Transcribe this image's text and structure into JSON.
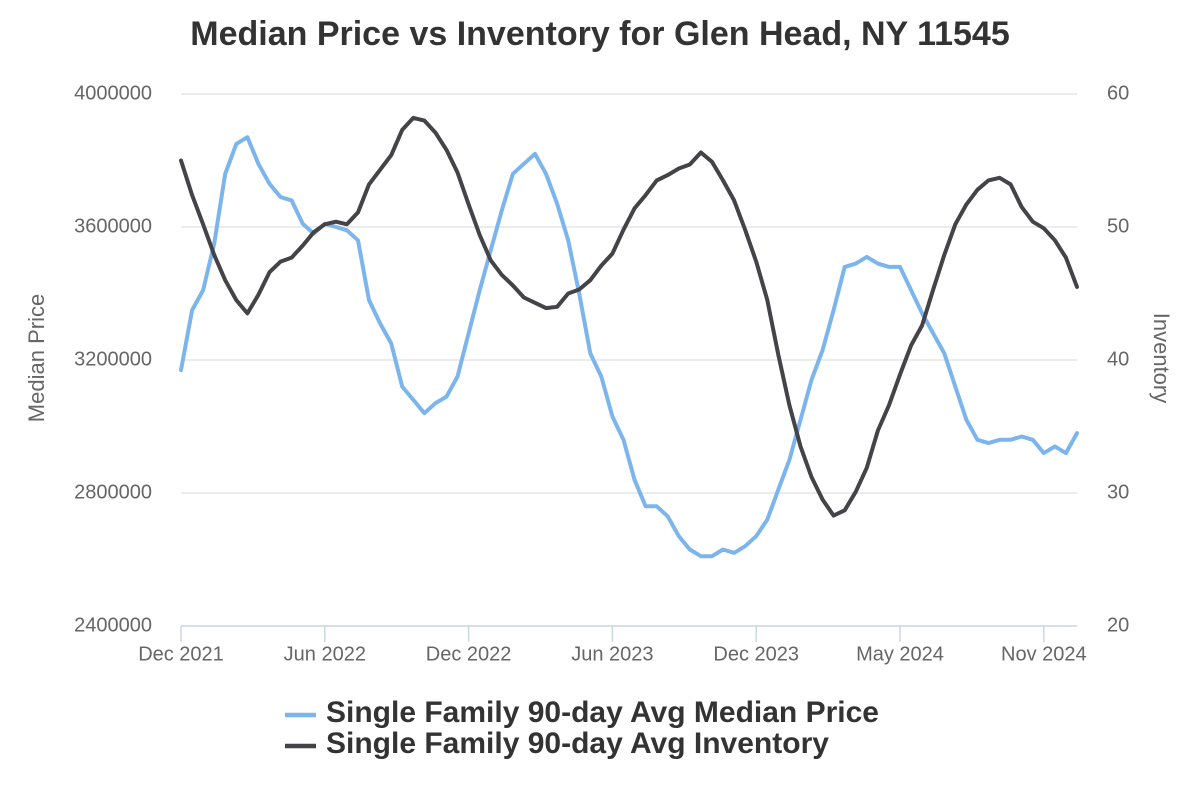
{
  "chart_data": {
    "type": "line",
    "title": "Median Price vs Inventory for Glen Head, NY 11545",
    "y_label": "Median Price",
    "y2_label": "Inventory",
    "categories": [
      "Dec 2021",
      null,
      null,
      null,
      null,
      null,
      null,
      null,
      null,
      null,
      null,
      null,
      null,
      "Jun 2022",
      null,
      null,
      null,
      null,
      null,
      null,
      null,
      null,
      null,
      null,
      null,
      null,
      "Dec 2022",
      null,
      null,
      null,
      null,
      null,
      null,
      null,
      null,
      null,
      null,
      null,
      null,
      "Jun 2023",
      null,
      null,
      null,
      null,
      null,
      null,
      null,
      null,
      null,
      null,
      null,
      null,
      "Dec 2023",
      null,
      null,
      null,
      null,
      null,
      null,
      null,
      null,
      null,
      null,
      null,
      null,
      "May 2024",
      null,
      null,
      null,
      null,
      null,
      null,
      null,
      null,
      null,
      null,
      null,
      null,
      "Nov 2024",
      null,
      null,
      null
    ],
    "series": [
      {
        "name": "Single Family 90-day Avg Median Price",
        "color": "#7cb5ec",
        "axis": "y",
        "values": [
          3170000,
          3350000,
          3410000,
          3550000,
          3760000,
          3850000,
          3870000,
          3790000,
          3730000,
          3690000,
          3680000,
          3610000,
          3580000,
          3610000,
          3600000,
          3590000,
          3560000,
          3380000,
          3310000,
          3250000,
          3120000,
          3080000,
          3040000,
          3070000,
          3090000,
          3150000,
          3280000,
          3410000,
          3530000,
          3650000,
          3760000,
          3790000,
          3820000,
          3760000,
          3670000,
          3560000,
          3400000,
          3220000,
          3150000,
          3030000,
          2960000,
          2840000,
          2760000,
          2760000,
          2730000,
          2670000,
          2630000,
          2610000,
          2610000,
          2630000,
          2620000,
          2640000,
          2670000,
          2720000,
          2810000,
          2900000,
          3020000,
          3140000,
          3230000,
          3350000,
          3480000,
          3490000,
          3510000,
          3490000,
          3480000,
          3480000,
          3410000,
          3340000,
          3280000,
          3220000,
          3120000,
          3020000,
          2960000,
          2950000,
          2960000,
          2960000,
          2970000,
          2960000,
          2920000,
          2940000,
          2920000,
          2980000
        ]
      },
      {
        "name": "Single Family 90-day Avg Inventory",
        "color": "#434348",
        "axis": "y2",
        "values": [
          55.0,
          52.4,
          50.2,
          47.9,
          46.0,
          44.5,
          43.5,
          44.9,
          46.6,
          47.4,
          47.7,
          48.6,
          49.6,
          50.2,
          50.4,
          50.2,
          51.1,
          53.2,
          54.3,
          55.4,
          57.3,
          58.2,
          58.0,
          57.1,
          55.8,
          54.1,
          51.7,
          49.4,
          47.5,
          46.4,
          45.6,
          44.7,
          44.3,
          43.9,
          44.0,
          45.0,
          45.3,
          46.0,
          47.1,
          48.0,
          49.8,
          51.4,
          52.4,
          53.5,
          53.9,
          54.4,
          54.7,
          55.6,
          54.9,
          53.5,
          52.0,
          49.8,
          47.4,
          44.5,
          40.4,
          36.6,
          33.5,
          31.2,
          29.5,
          28.3,
          28.7,
          30.1,
          31.9,
          34.7,
          36.6,
          38.9,
          41.1,
          42.6,
          45.3,
          47.9,
          50.2,
          51.7,
          52.8,
          53.5,
          53.7,
          53.2,
          51.5,
          50.4,
          49.9,
          49.0,
          47.7,
          45.5
        ]
      }
    ],
    "ylim": [
      2400000,
      4000000
    ],
    "yticks": [
      2400000,
      2800000,
      3200000,
      3600000,
      4000000
    ],
    "y2lim": [
      20,
      60
    ],
    "y2ticks": [
      20,
      30,
      40,
      50,
      60
    ],
    "grid": true,
    "legend": "bottom"
  }
}
